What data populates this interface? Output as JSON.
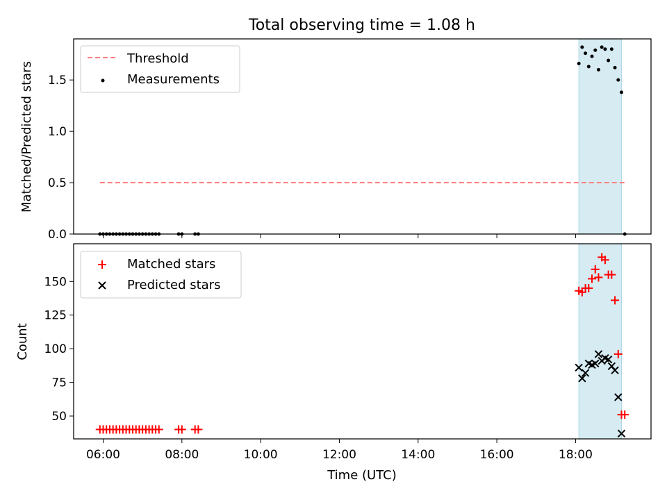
{
  "chart_data": [
    {
      "type": "scatter",
      "title": "Total observing time = 1.08 h",
      "ylabel": "Matched/Predicted stars",
      "xlim": [
        "05:15",
        "19:55"
      ],
      "ylim": [
        0,
        1.9
      ],
      "x_ticks": [
        "06:00",
        "08:00",
        "10:00",
        "12:00",
        "14:00",
        "16:00",
        "18:00"
      ],
      "y_ticks": [
        "0.0",
        "0.5",
        "1.0",
        "1.5"
      ],
      "highlight_span": [
        "18:05",
        "19:10"
      ],
      "legend": {
        "placement": "upper-left",
        "entries": [
          "Threshold",
          "Measurements"
        ]
      },
      "series": [
        {
          "name": "Threshold",
          "kind": "dashed-line",
          "color": "#ff7f7f",
          "x": [
            "05:55",
            "19:15"
          ],
          "values": [
            0.5,
            0.5
          ]
        },
        {
          "name": "Measurements",
          "kind": "points",
          "color": "#000000",
          "x": [
            "05:55",
            "06:00",
            "06:05",
            "06:10",
            "06:15",
            "06:20",
            "06:25",
            "06:30",
            "06:35",
            "06:40",
            "06:45",
            "06:50",
            "06:55",
            "07:00",
            "07:05",
            "07:10",
            "07:15",
            "07:20",
            "07:25",
            "07:55",
            "08:00",
            "08:20",
            "08:25",
            "18:05",
            "18:10",
            "18:15",
            "18:20",
            "18:25",
            "18:30",
            "18:35",
            "18:40",
            "18:45",
            "18:50",
            "18:55",
            "19:00",
            "19:05",
            "19:10",
            "19:15"
          ],
          "values": [
            0,
            0,
            0,
            0,
            0,
            0,
            0,
            0,
            0,
            0,
            0,
            0,
            0,
            0,
            0,
            0,
            0,
            0,
            0,
            0,
            0,
            0,
            0,
            1.66,
            1.82,
            1.76,
            1.63,
            1.73,
            1.79,
            1.6,
            1.82,
            1.8,
            1.69,
            1.8,
            1.62,
            1.5,
            1.38,
            0
          ]
        }
      ]
    },
    {
      "type": "scatter",
      "xlabel": "Time (UTC)",
      "ylabel": "Count",
      "xlim": [
        "05:15",
        "19:55"
      ],
      "ylim": [
        33,
        178
      ],
      "x_ticks": [
        "06:00",
        "08:00",
        "10:00",
        "12:00",
        "14:00",
        "16:00",
        "18:00"
      ],
      "y_ticks": [
        "50",
        "75",
        "100",
        "125",
        "150"
      ],
      "highlight_span": [
        "18:05",
        "19:10"
      ],
      "legend": {
        "placement": "upper-left",
        "entries": [
          "Matched stars",
          "Predicted stars"
        ]
      },
      "series": [
        {
          "name": "Matched stars",
          "kind": "plus",
          "color": "#ff0000",
          "x": [
            "05:55",
            "06:00",
            "06:05",
            "06:10",
            "06:15",
            "06:20",
            "06:25",
            "06:30",
            "06:35",
            "06:40",
            "06:45",
            "06:50",
            "06:55",
            "07:00",
            "07:05",
            "07:10",
            "07:15",
            "07:20",
            "07:25",
            "07:55",
            "08:00",
            "08:20",
            "08:25",
            "18:05",
            "18:10",
            "18:15",
            "18:20",
            "18:25",
            "18:30",
            "18:35",
            "18:40",
            "18:45",
            "18:50",
            "18:55",
            "19:00",
            "19:05",
            "19:10",
            "19:15"
          ],
          "values": [
            40,
            40,
            40,
            40,
            40,
            40,
            40,
            40,
            40,
            40,
            40,
            40,
            40,
            40,
            40,
            40,
            40,
            40,
            40,
            40,
            40,
            40,
            40,
            143,
            142,
            145,
            145,
            152,
            159,
            153,
            168,
            166,
            155,
            155,
            136,
            96,
            51,
            51
          ]
        },
        {
          "name": "Predicted stars",
          "kind": "x",
          "color": "#000000",
          "x": [
            "18:05",
            "18:10",
            "18:15",
            "18:20",
            "18:25",
            "18:30",
            "18:35",
            "18:40",
            "18:45",
            "18:50",
            "18:55",
            "19:00",
            "19:05",
            "19:10"
          ],
          "values": [
            86,
            78,
            82,
            89,
            88,
            89,
            96,
            91,
            93,
            92,
            87,
            84,
            64,
            37
          ]
        }
      ]
    }
  ]
}
